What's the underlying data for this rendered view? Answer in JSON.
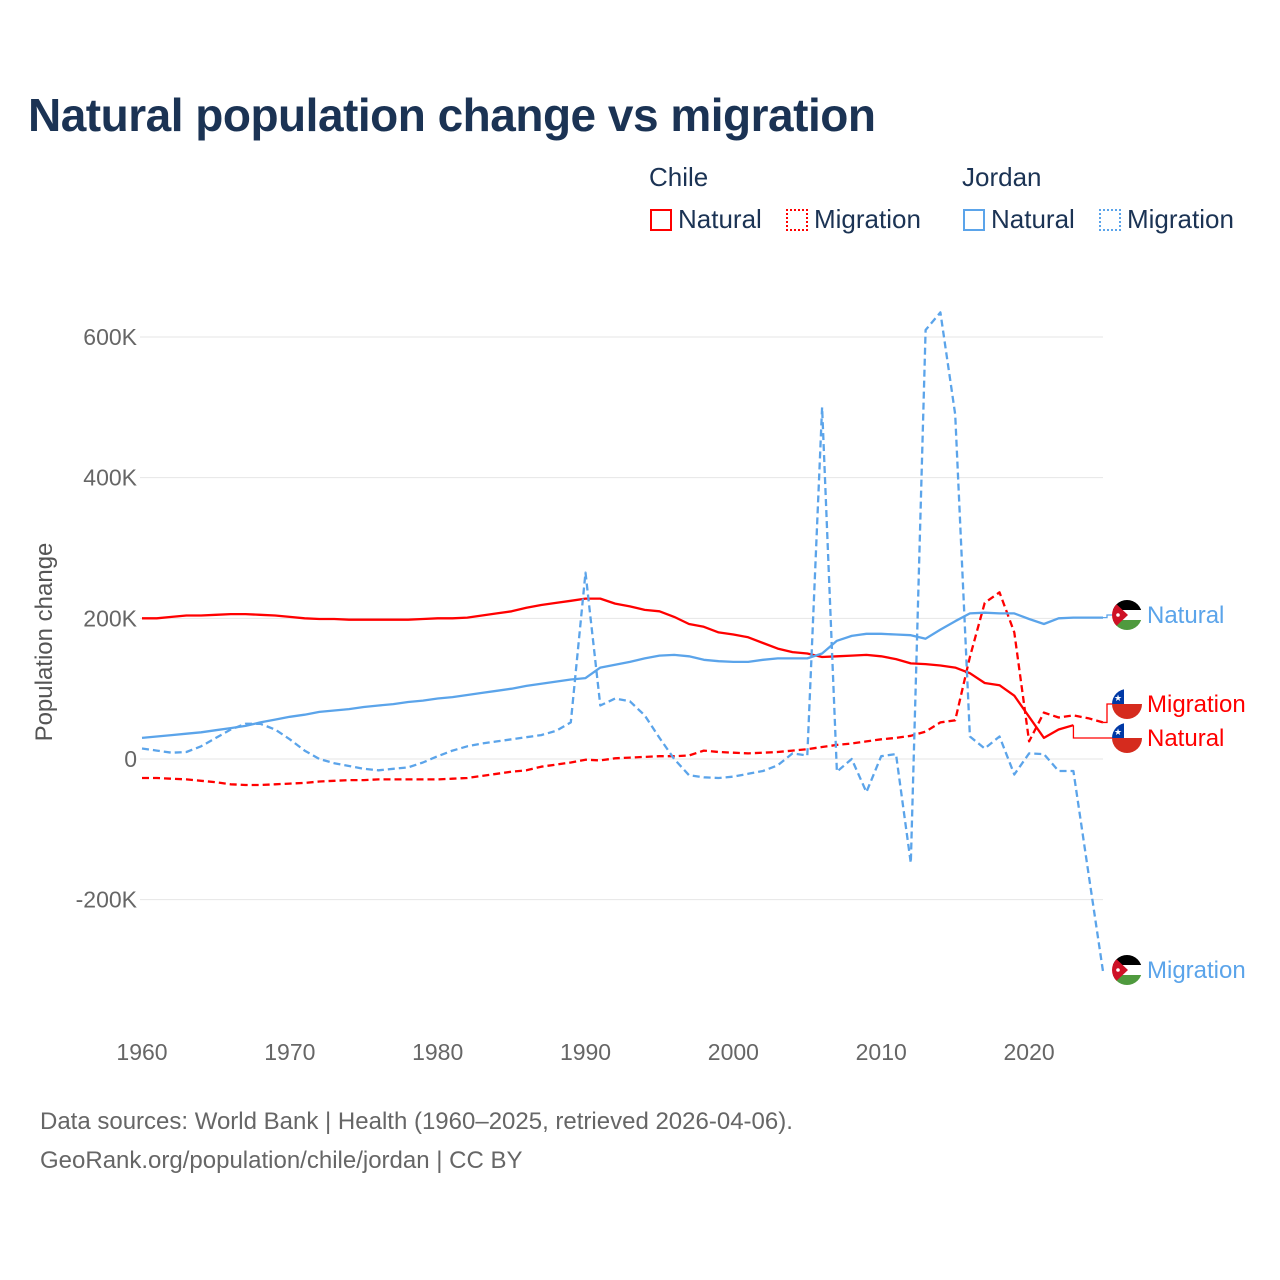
{
  "chart_data": {
    "type": "line",
    "title": "Natural population change vs migration",
    "xlabel": "",
    "ylabel": "Population change",
    "xlim": [
      1960,
      2025
    ],
    "ylim": [
      -300000,
      640000
    ],
    "grid": true,
    "legend_placement": "top-right",
    "x_ticks": [
      "1960",
      "1970",
      "1980",
      "1990",
      "2000",
      "2010",
      "2020"
    ],
    "x_tick_values": [
      1960,
      1970,
      1980,
      1990,
      2000,
      2010,
      2020
    ],
    "y_ticks": [
      "-200K",
      "0",
      "200K",
      "400K",
      "600K"
    ],
    "y_tick_values": [
      -200000,
      0,
      200000,
      400000,
      600000
    ],
    "x_start": 1960,
    "legend": {
      "groups": [
        {
          "name": "Chile",
          "items": [
            "Natural",
            "Migration"
          ]
        },
        {
          "name": "Jordan",
          "items": [
            "Natural",
            "Migration"
          ]
        }
      ]
    },
    "series": [
      {
        "name": "Chile Natural",
        "country": "Chile",
        "kind": "Natural",
        "label": "Natural",
        "color": "#ff0000",
        "dashed": false,
        "unit": "thousands",
        "values": [
          200,
          200,
          202,
          204,
          204,
          205,
          206,
          206,
          205,
          204,
          202,
          200,
          199,
          199,
          198,
          198,
          198,
          198,
          198,
          199,
          200,
          200,
          201,
          204,
          207,
          210,
          215,
          219,
          222,
          225,
          228,
          228,
          221,
          217,
          212,
          210,
          202,
          192,
          188,
          180,
          177,
          173,
          165,
          157,
          152,
          150,
          145,
          146,
          147,
          148,
          146,
          142,
          136,
          135,
          133,
          130,
          122,
          108,
          105,
          90,
          60,
          30,
          42,
          48,
          null,
          null
        ]
      },
      {
        "name": "Chile Migration",
        "country": "Chile",
        "kind": "Migration",
        "label": "Migration",
        "color": "#ff0000",
        "dashed": true,
        "unit": "thousands",
        "values": [
          -27,
          -27,
          -28,
          -29,
          -31,
          -33,
          -36,
          -37,
          -37,
          -36,
          -35,
          -34,
          -32,
          -31,
          -30,
          -30,
          -29,
          -29,
          -29,
          -29,
          -29,
          -28,
          -27,
          -24,
          -21,
          -18,
          -16,
          -11,
          -8,
          -5,
          -1,
          -2,
          1,
          2,
          3,
          4,
          4,
          5,
          12,
          10,
          9,
          8,
          9,
          10,
          12,
          14,
          17,
          20,
          22,
          25,
          28,
          30,
          33,
          39,
          52,
          55,
          145,
          222,
          237,
          180,
          25,
          66,
          59,
          62,
          58,
          52
        ]
      },
      {
        "name": "Jordan Natural",
        "country": "Jordan",
        "kind": "Natural",
        "label": "Natural",
        "color": "#5ba4ea",
        "dashed": false,
        "unit": "thousands",
        "values": [
          30,
          32,
          34,
          36,
          38,
          41,
          44,
          47,
          52,
          56,
          60,
          63,
          67,
          69,
          71,
          74,
          76,
          78,
          81,
          83,
          86,
          88,
          91,
          94,
          97,
          100,
          104,
          107,
          110,
          113,
          115,
          130,
          134,
          138,
          143,
          147,
          148,
          146,
          141,
          139,
          138,
          138,
          141,
          143,
          143,
          143,
          150,
          168,
          175,
          178,
          178,
          177,
          176,
          171,
          184,
          196,
          207,
          208,
          207,
          207,
          199,
          192,
          200,
          201,
          201,
          201
        ]
      },
      {
        "name": "Jordan Migration",
        "country": "Jordan",
        "kind": "Migration",
        "label": "Migration",
        "color": "#5ba4ea",
        "dashed": true,
        "unit": "thousands",
        "values": [
          15,
          12,
          9,
          10,
          18,
          30,
          42,
          50,
          50,
          42,
          28,
          12,
          0,
          -6,
          -10,
          -14,
          -16,
          -14,
          -12,
          -5,
          4,
          12,
          18,
          22,
          25,
          28,
          31,
          34,
          40,
          52,
          265,
          76,
          86,
          82,
          62,
          30,
          0,
          -23,
          -26,
          -27,
          -25,
          -21,
          -17,
          -9,
          8,
          5,
          500,
          -18,
          0,
          -47,
          4,
          7,
          -148,
          610,
          635,
          490,
          32,
          15,
          32,
          -22,
          8,
          7,
          -17,
          -17,
          -160,
          -302
        ]
      }
    ]
  },
  "footer": {
    "line1": "Data sources: World Bank | Health (1960–2025, retrieved 2026-04-06).",
    "line2": "GeoRank.org/population/chile/jordan | CC BY"
  }
}
